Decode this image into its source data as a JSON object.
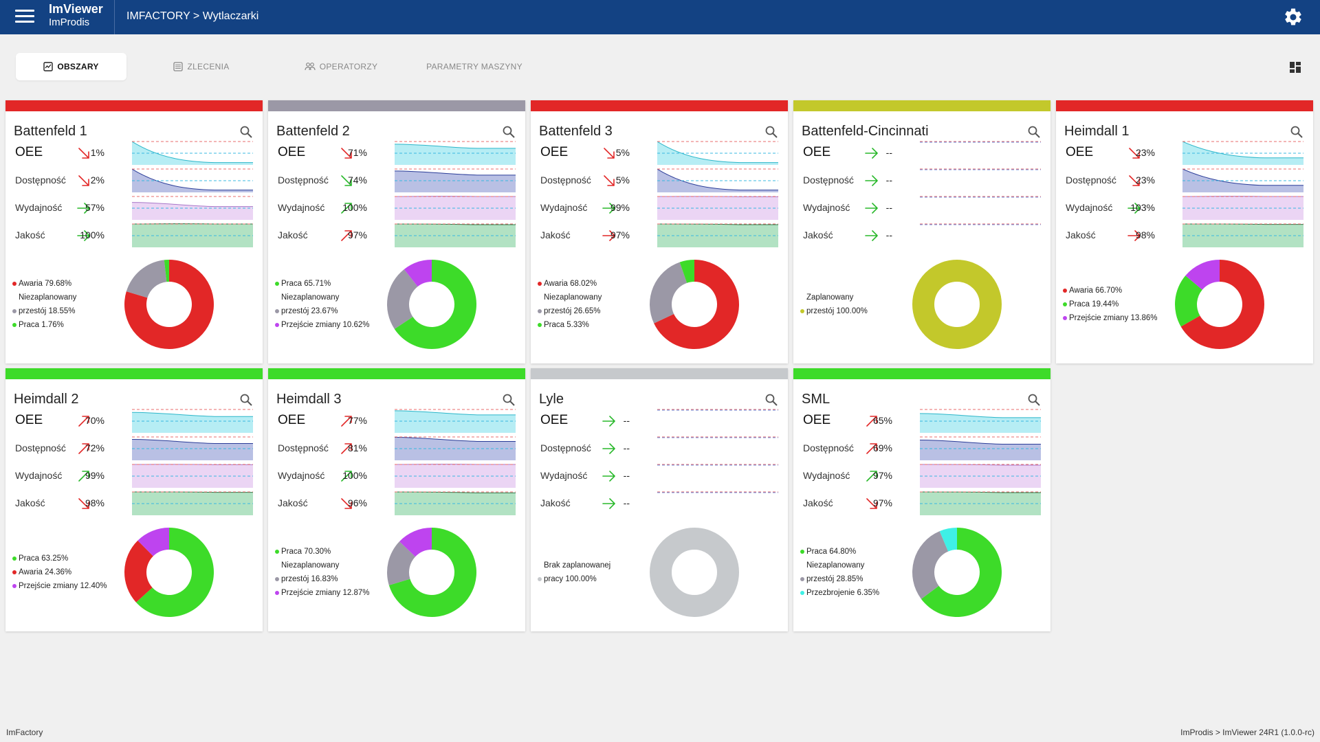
{
  "app": {
    "title": "ImViewer",
    "subtitle": "ImProdis",
    "breadcrumb": "IMFACTORY > Wytlaczarki"
  },
  "tabs": [
    {
      "label": "OBSZARY",
      "icon": "chart-icon",
      "active": true
    },
    {
      "label": "ZLECENIA",
      "icon": "list-icon",
      "active": false
    },
    {
      "label": "OPERATORZY",
      "icon": "people-icon",
      "active": false
    },
    {
      "label": "PARAMETRY MASZYNY",
      "icon": "",
      "active": false
    }
  ],
  "colors": {
    "red": "#e22727",
    "grey": "#9b98a6",
    "green": "#3ddb29",
    "olive": "#c3c82b",
    "lightgrey": "#c6c9cc",
    "purple": "#be44ef",
    "cyan": "#3ff0e6",
    "oee": "#b2ecf3",
    "avail": "#b5bde3",
    "perf": "#ead3f3",
    "qual": "#aee0c0"
  },
  "machines": [
    {
      "name": "Battenfeld 1",
      "status_color": "#e22727",
      "metrics": [
        {
          "label": "OEE",
          "value": "1%",
          "trend": "down"
        },
        {
          "label": "Dostępność",
          "value": "2%",
          "trend": "down"
        },
        {
          "label": "Wydajność",
          "value": "57%",
          "trend": "flat"
        },
        {
          "label": "Jakość",
          "value": "100%",
          "trend": "flat"
        }
      ],
      "spark_levels": [
        0.1,
        0.1,
        0.57,
        1.0
      ],
      "breakdown": [
        {
          "label": "Awaria 79.68%",
          "fraction": 0.7968,
          "color": "#e22727"
        },
        {
          "label": "Niezaplanowany przestój 18.55%",
          "fraction": 0.1855,
          "color": "#9b98a6"
        },
        {
          "label": "Praca 1.76%",
          "fraction": 0.0176,
          "color": "#3ddb29"
        }
      ]
    },
    {
      "name": "Battenfeld 2",
      "status_color": "#9b98a6",
      "metrics": [
        {
          "label": "OEE",
          "value": "71%",
          "trend": "down"
        },
        {
          "label": "Dostępność",
          "value": "74%",
          "trend": "down-green"
        },
        {
          "label": "Wydajność",
          "value": "100%",
          "trend": "up"
        },
        {
          "label": "Jakość",
          "value": "97%",
          "trend": "up-red"
        }
      ],
      "spark_levels": [
        0.71,
        0.74,
        1.0,
        0.97
      ],
      "breakdown": [
        {
          "label": "Praca 65.71%",
          "fraction": 0.6571,
          "color": "#3ddb29"
        },
        {
          "label": "Niezaplanowany przestój 23.67%",
          "fraction": 0.2367,
          "color": "#9b98a6"
        },
        {
          "label": "Przejście zmiany 10.62%",
          "fraction": 0.1062,
          "color": "#be44ef"
        }
      ]
    },
    {
      "name": "Battenfeld 3",
      "status_color": "#e22727",
      "metrics": [
        {
          "label": "OEE",
          "value": "5%",
          "trend": "down"
        },
        {
          "label": "Dostępność",
          "value": "5%",
          "trend": "down"
        },
        {
          "label": "Wydajność",
          "value": "99%",
          "trend": "flat"
        },
        {
          "label": "Jakość",
          "value": "97%",
          "trend": "flat-red"
        }
      ],
      "spark_levels": [
        0.1,
        0.1,
        0.99,
        0.97
      ],
      "breakdown": [
        {
          "label": "Awaria 68.02%",
          "fraction": 0.6802,
          "color": "#e22727"
        },
        {
          "label": "Niezaplanowany przestój 26.65%",
          "fraction": 0.2665,
          "color": "#9b98a6"
        },
        {
          "label": "Praca 5.33%",
          "fraction": 0.0533,
          "color": "#3ddb29"
        }
      ]
    },
    {
      "name": "Battenfeld-Cincinnati",
      "status_color": "#c3c82b",
      "metrics": [
        {
          "label": "OEE",
          "value": "--",
          "trend": "flat"
        },
        {
          "label": "Dostępność",
          "value": "--",
          "trend": "flat"
        },
        {
          "label": "Wydajność",
          "value": "--",
          "trend": "flat"
        },
        {
          "label": "Jakość",
          "value": "--",
          "trend": "flat"
        }
      ],
      "spark_levels": [
        0,
        0,
        0,
        0
      ],
      "breakdown": [
        {
          "label": "Zaplanowany przestój 100.00%",
          "fraction": 1.0,
          "color": "#c3c82b"
        }
      ]
    },
    {
      "name": "Heimdall 1",
      "status_color": "#e22727",
      "metrics": [
        {
          "label": "OEE",
          "value": "23%",
          "trend": "down"
        },
        {
          "label": "Dostępność",
          "value": "23%",
          "trend": "down"
        },
        {
          "label": "Wydajność",
          "value": "103%",
          "trend": "flat-green"
        },
        {
          "label": "Jakość",
          "value": "98%",
          "trend": "flat-red"
        }
      ],
      "spark_levels": [
        0.3,
        0.3,
        1.0,
        0.98
      ],
      "breakdown": [
        {
          "label": "Awaria 66.70%",
          "fraction": 0.667,
          "color": "#e22727"
        },
        {
          "label": "Praca 19.44%",
          "fraction": 0.1944,
          "color": "#3ddb29"
        },
        {
          "label": "Przejście zmiany 13.86%",
          "fraction": 0.1386,
          "color": "#be44ef"
        }
      ]
    },
    {
      "name": "Heimdall 2",
      "status_color": "#3ddb29",
      "metrics": [
        {
          "label": "OEE",
          "value": "70%",
          "trend": "up-red"
        },
        {
          "label": "Dostępność",
          "value": "72%",
          "trend": "up-red"
        },
        {
          "label": "Wydajność",
          "value": "99%",
          "trend": "up"
        },
        {
          "label": "Jakość",
          "value": "98%",
          "trend": "down"
        }
      ],
      "spark_levels": [
        0.7,
        0.72,
        0.99,
        0.98
      ],
      "breakdown": [
        {
          "label": "Praca 63.25%",
          "fraction": 0.6325,
          "color": "#3ddb29"
        },
        {
          "label": "Awaria 24.36%",
          "fraction": 0.2436,
          "color": "#e22727"
        },
        {
          "label": "Przejście zmiany 12.40%",
          "fraction": 0.124,
          "color": "#be44ef"
        }
      ]
    },
    {
      "name": "Heimdall 3",
      "status_color": "#3ddb29",
      "metrics": [
        {
          "label": "OEE",
          "value": "77%",
          "trend": "up-red"
        },
        {
          "label": "Dostępność",
          "value": "81%",
          "trend": "up-red"
        },
        {
          "label": "Wydajność",
          "value": "100%",
          "trend": "up"
        },
        {
          "label": "Jakość",
          "value": "96%",
          "trend": "down"
        }
      ],
      "spark_levels": [
        0.77,
        0.81,
        1.0,
        0.96
      ],
      "breakdown": [
        {
          "label": "Praca 70.30%",
          "fraction": 0.703,
          "color": "#3ddb29"
        },
        {
          "label": "Niezaplanowany przestój 16.83%",
          "fraction": 0.1683,
          "color": "#9b98a6"
        },
        {
          "label": "Przejście zmiany 12.87%",
          "fraction": 0.1287,
          "color": "#be44ef"
        }
      ]
    },
    {
      "name": "Lyle",
      "status_color": "#c6c9cc",
      "metrics": [
        {
          "label": "OEE",
          "value": "--",
          "trend": "flat"
        },
        {
          "label": "Dostępność",
          "value": "--",
          "trend": "flat"
        },
        {
          "label": "Wydajność",
          "value": "--",
          "trend": "flat"
        },
        {
          "label": "Jakość",
          "value": "--",
          "trend": "flat"
        }
      ],
      "spark_levels": [
        0,
        0,
        0,
        0
      ],
      "breakdown": [
        {
          "label": "Brak zaplanowanej pracy 100.00%",
          "fraction": 1.0,
          "color": "#c6c9cc"
        }
      ]
    },
    {
      "name": "SML",
      "status_color": "#3ddb29",
      "metrics": [
        {
          "label": "OEE",
          "value": "65%",
          "trend": "up-red"
        },
        {
          "label": "Dostępność",
          "value": "69%",
          "trend": "up-red"
        },
        {
          "label": "Wydajność",
          "value": "97%",
          "trend": "up"
        },
        {
          "label": "Jakość",
          "value": "97%",
          "trend": "down"
        }
      ],
      "spark_levels": [
        0.65,
        0.69,
        0.97,
        0.97
      ],
      "breakdown": [
        {
          "label": "Praca 64.80%",
          "fraction": 0.648,
          "color": "#3ddb29"
        },
        {
          "label": "Niezaplanowany przestój 28.85%",
          "fraction": 0.2885,
          "color": "#9b98a6"
        },
        {
          "label": "Przezbrojenie 6.35%",
          "fraction": 0.0635,
          "color": "#3ff0e6"
        }
      ]
    }
  ],
  "footer": {
    "left": "ImFactory",
    "right": "ImProdis > ImViewer 24R1 (1.0.0-rc)"
  }
}
